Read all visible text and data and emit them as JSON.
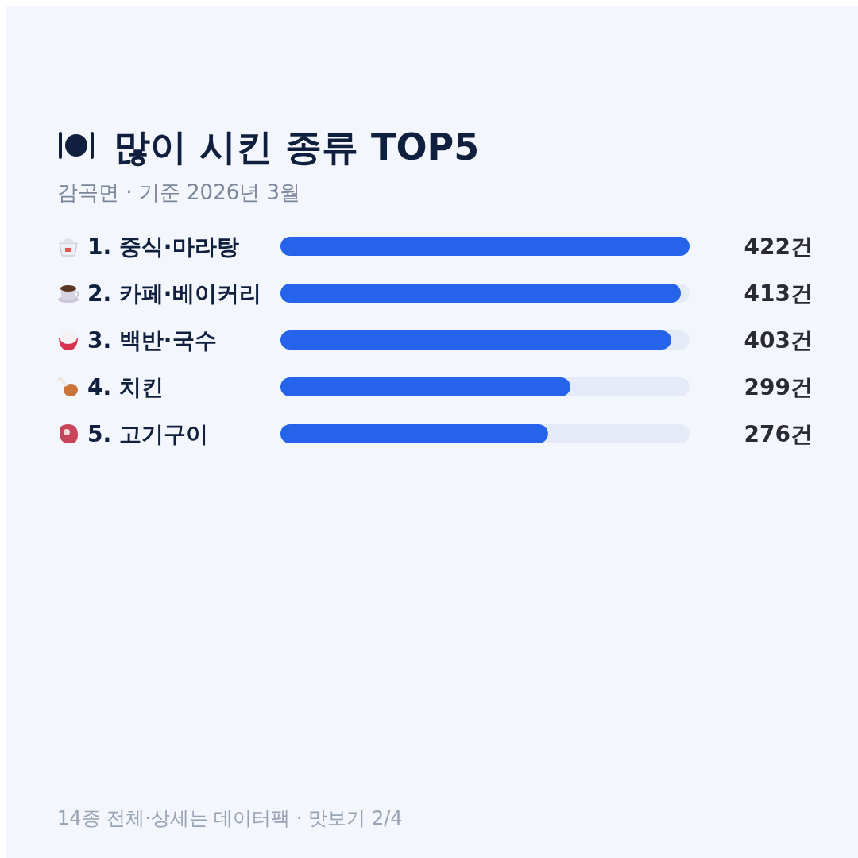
{
  "chart_data": {
    "type": "bar",
    "orientation": "horizontal",
    "title": "많이 시킨 종류 TOP5",
    "subtitle": "감곡면 · 기준 2026년 3월",
    "categories": [
      "1. 중식·마라탕",
      "2. 카페·베이커리",
      "3. 백반·국수",
      "4. 치킨",
      "5. 고기구이"
    ],
    "values": [
      422,
      413,
      403,
      299,
      276
    ],
    "value_labels": [
      "422건",
      "413건",
      "403건",
      "299건",
      "276건"
    ],
    "color": "#2563eb",
    "annotations": [
      "14종 전체·상세는 데이터팩 · 맛보기 2/4"
    ]
  }
}
